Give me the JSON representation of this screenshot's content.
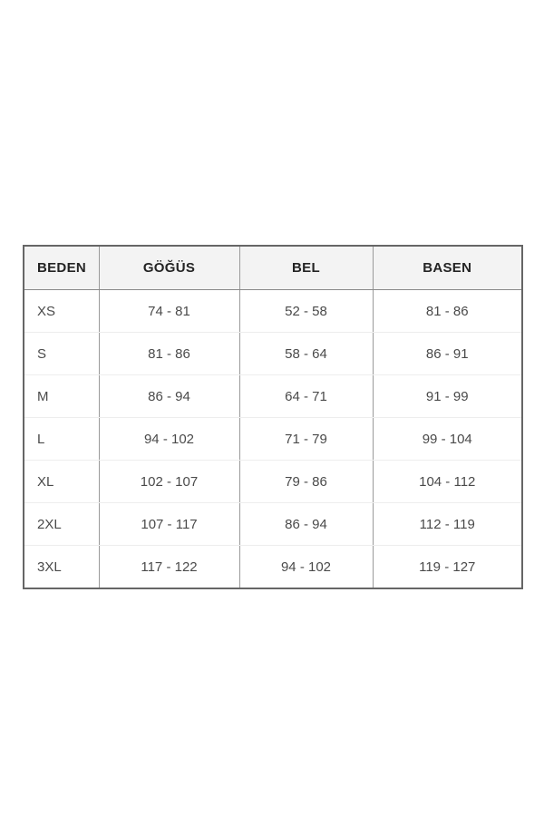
{
  "chart_data": {
    "type": "table",
    "columns": [
      "BEDEN",
      "GÖĞÜS",
      "BEL",
      "BASEN"
    ],
    "rows": [
      [
        "XS",
        "74 - 81",
        "52 - 58",
        "81 - 86"
      ],
      [
        "S",
        "81 - 86",
        "58 - 64",
        "86 - 91"
      ],
      [
        "M",
        "86 - 94",
        "64 - 71",
        "91 - 99"
      ],
      [
        "L",
        "94 - 102",
        "71 - 79",
        "99 - 104"
      ],
      [
        "XL",
        "102 - 107",
        "79 - 86",
        "104 - 112"
      ],
      [
        "2XL",
        "107 - 117",
        "86 - 94",
        "112 - 119"
      ],
      [
        "3XL",
        "117 - 122",
        "94 - 102",
        "119 - 127"
      ]
    ],
    "layout": {
      "legend": "none",
      "grid": "column-dividers-and-faint-row-separators",
      "first_column_alignment": "left",
      "value_columns_alignment": "center"
    }
  },
  "colors": {
    "page_bg": "#ffffff",
    "header_bg": "#f3f3f3",
    "outer_border": "#666666",
    "column_divider": "#9a9a9a",
    "header_bottom_border": "#8a8a8a",
    "row_separator": "#ededed",
    "header_text": "#242424",
    "body_text": "#4a4a4a"
  }
}
